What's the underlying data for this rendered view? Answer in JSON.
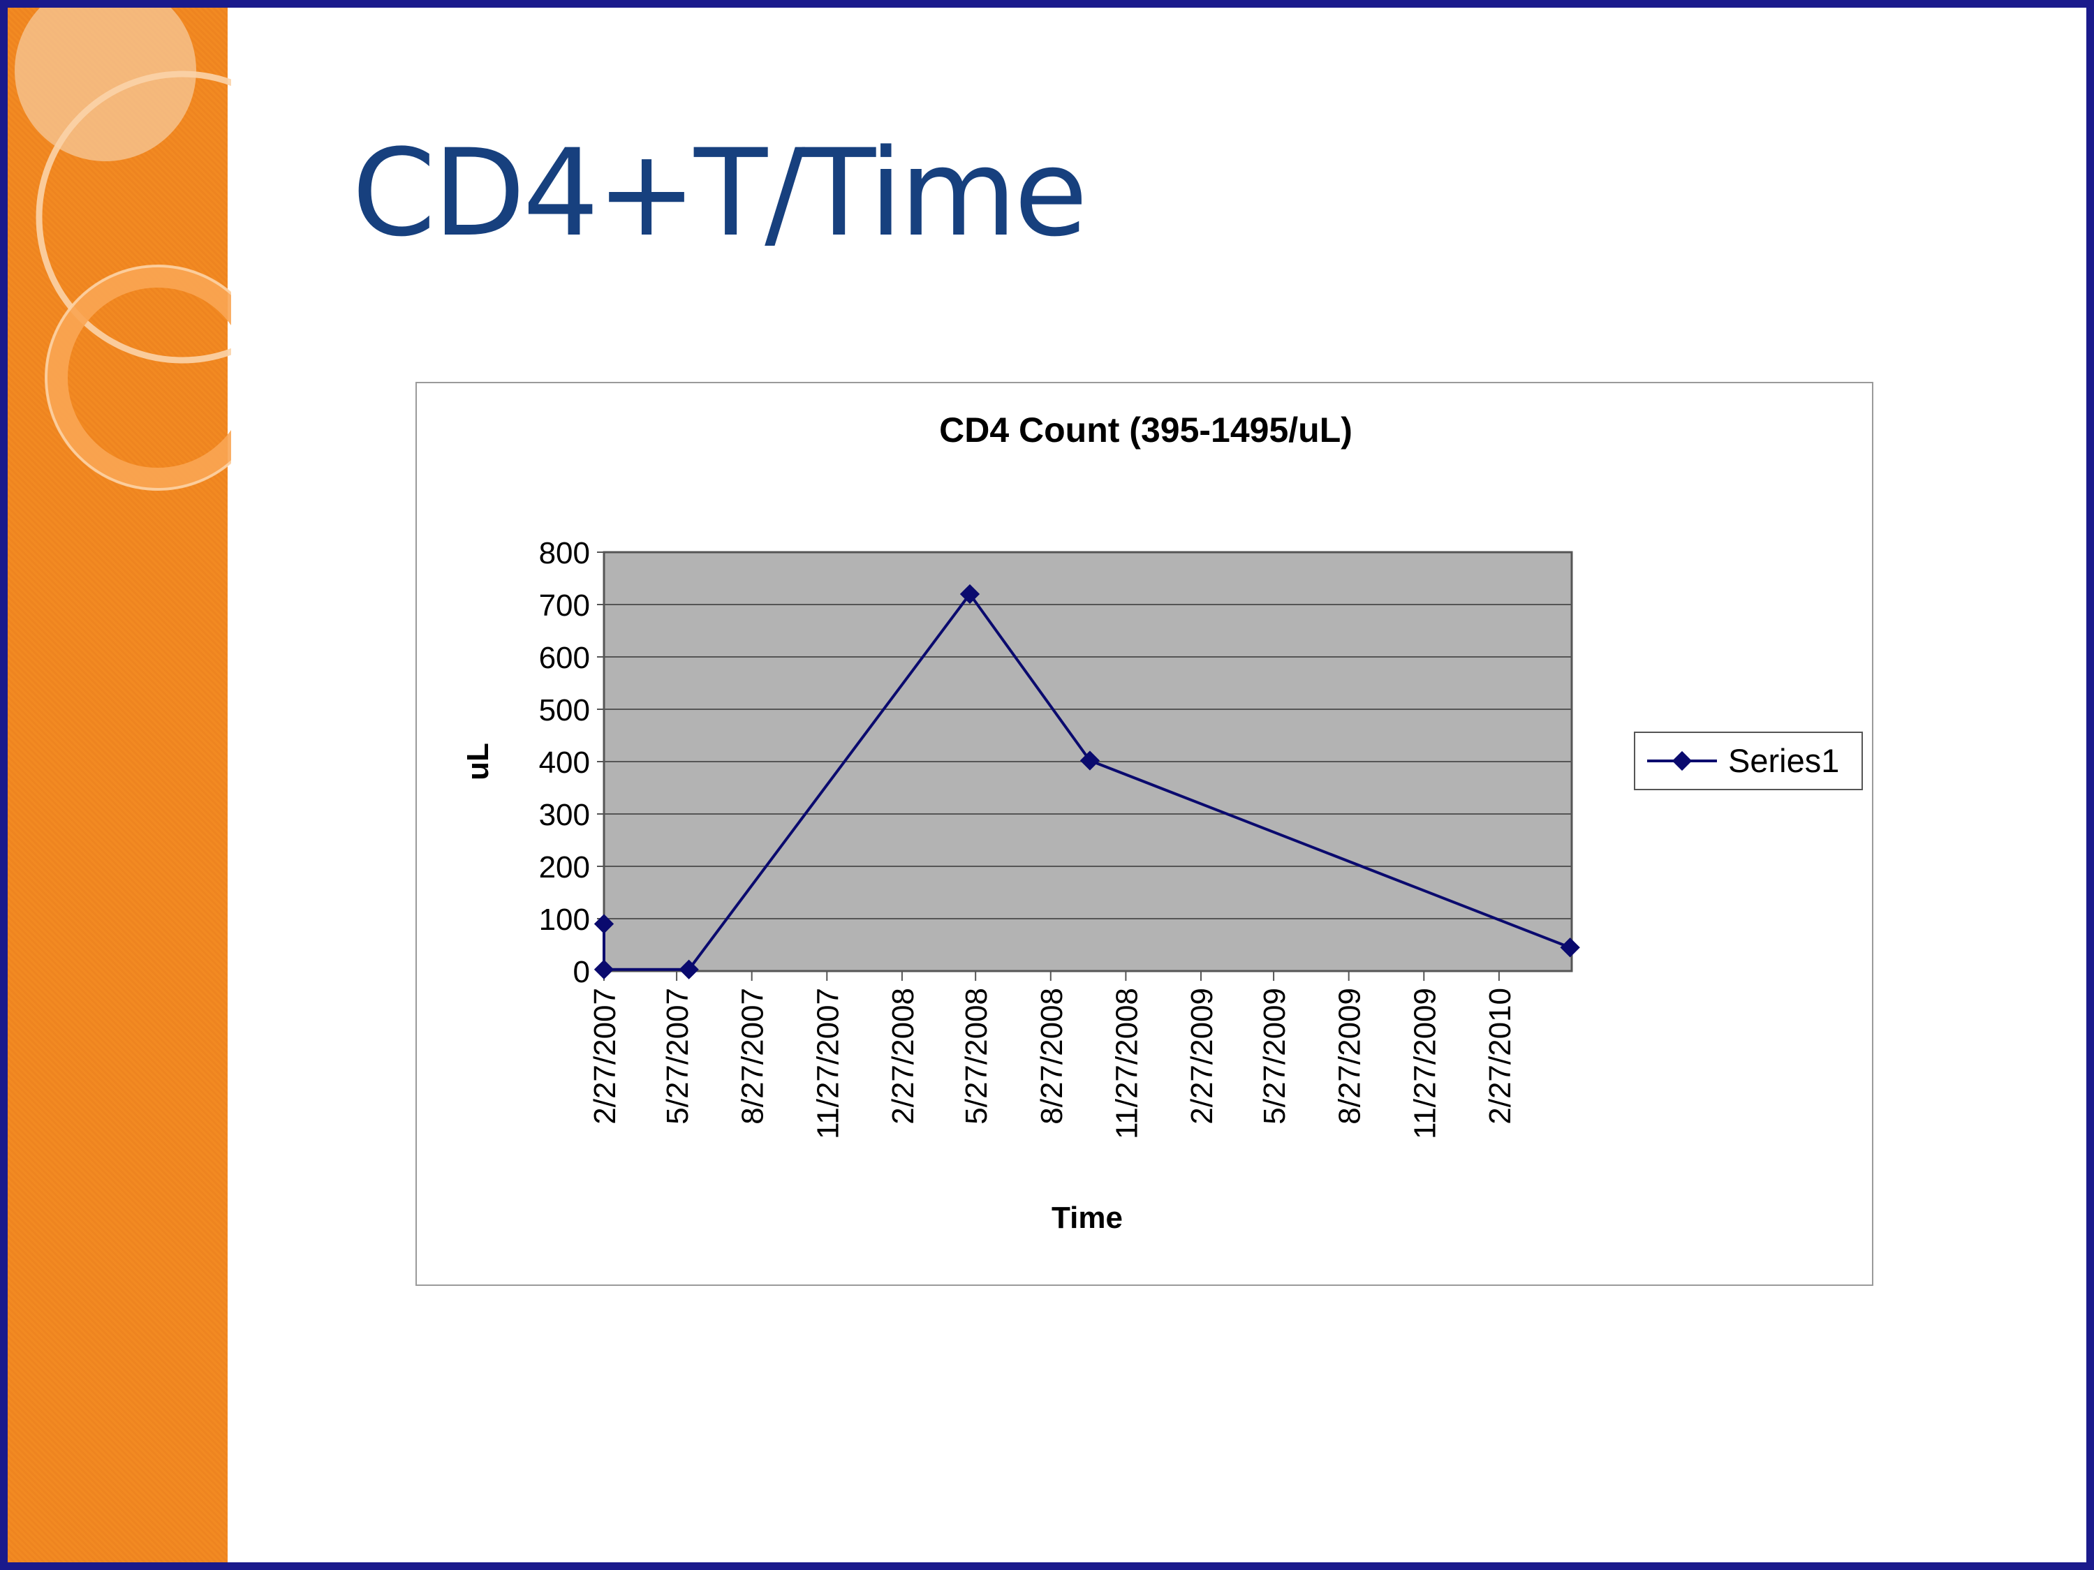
{
  "slide": {
    "title": "CD4+T/Time"
  },
  "colors": {
    "title": "#17407e",
    "series": "#0a0a6e",
    "plot_bg": "#b3b3b3",
    "side_band": "#f28a22",
    "slide_border": "#1a1a8c"
  },
  "chart_data": {
    "type": "line",
    "title": "CD4 Count (395-1495/uL)",
    "xlabel": "Time",
    "ylabel": "uL",
    "ylim": [
      0,
      800
    ],
    "yticks": [
      "0",
      "100",
      "200",
      "300",
      "400",
      "500",
      "600",
      "700",
      "800"
    ],
    "xticks": [
      "2/27/2007",
      "5/27/2007",
      "8/27/2007",
      "11/27/2007",
      "2/27/2008",
      "5/27/2008",
      "8/27/2008",
      "11/27/2008",
      "2/27/2009",
      "5/27/2009",
      "8/27/2009",
      "11/27/2009",
      "2/27/2010"
    ],
    "xlim": [
      "2/27/2007",
      "5/27/2010"
    ],
    "grid": true,
    "legend_position": "right",
    "series": [
      {
        "name": "Series1",
        "points": [
          {
            "x": "2/27/2007",
            "y": 90
          },
          {
            "x": "2/27/2007",
            "y": 3
          },
          {
            "x": "6/11/2007",
            "y": 3
          },
          {
            "x": "5/20/2008",
            "y": 720
          },
          {
            "x": "10/14/2008",
            "y": 402
          },
          {
            "x": "5/25/2010",
            "y": 45
          }
        ]
      }
    ]
  }
}
